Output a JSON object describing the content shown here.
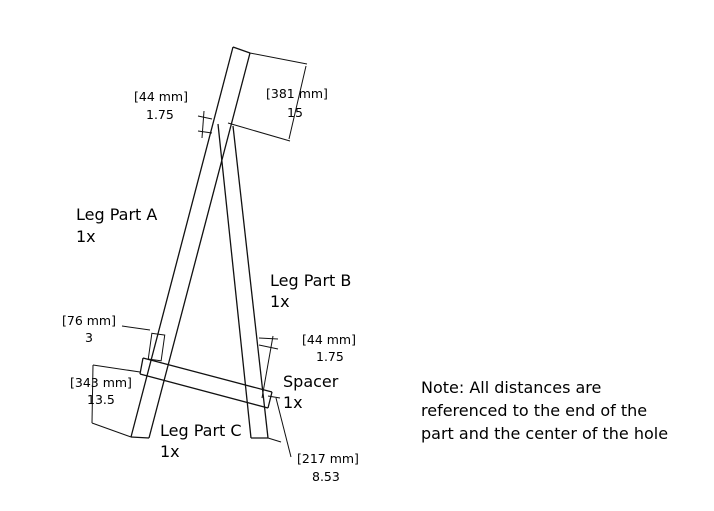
{
  "parts": {
    "leg_a": {
      "name": "Leg Part A",
      "qty": "1x"
    },
    "leg_b": {
      "name": "Leg Part B",
      "qty": "1x"
    },
    "leg_c": {
      "name": "Leg Part C",
      "qty": "1x"
    },
    "spacer": {
      "name": "Spacer",
      "qty": "1x"
    }
  },
  "dimensions": {
    "top_width": {
      "mm": "[44 mm]",
      "in": "1.75"
    },
    "top_length": {
      "mm": "[381 mm]",
      "in": "15"
    },
    "hole_offset": {
      "mm": "[76 mm]",
      "in": "3"
    },
    "leg_c_length": {
      "mm": "[343 mm]",
      "in": "13.5"
    },
    "leg_b_width": {
      "mm": "[44 mm]",
      "in": "1.75"
    },
    "leg_b_length": {
      "mm": "[217 mm]",
      "in": "8.53"
    }
  },
  "note": {
    "line1": "Note: All distances are",
    "line2": "referenced to the end of the",
    "line3": "part and the center of the hole"
  }
}
